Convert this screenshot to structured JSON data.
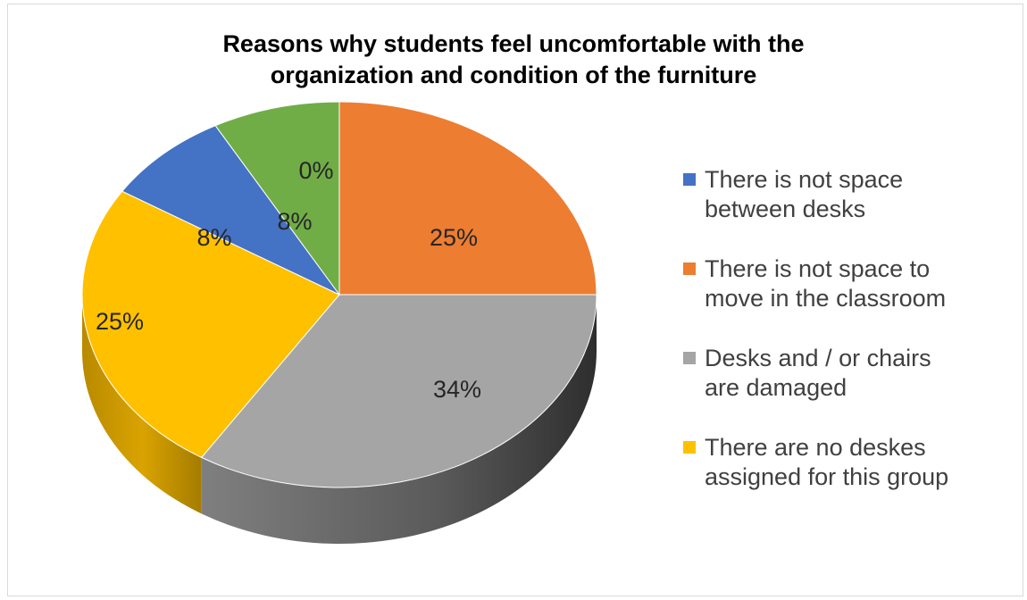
{
  "chart_data": {
    "type": "pie",
    "title": [
      "Reasons why students feel uncomfortable with the",
      "organization and condition of the furniture"
    ],
    "three_d": true,
    "legend_position": "right",
    "slices": [
      {
        "label": [
          "There is not space",
          "between desks"
        ],
        "value": 8,
        "data_label": "8%",
        "color": "#4472c4"
      },
      {
        "label": [
          "There is not space to",
          "move in the classroom"
        ],
        "value": 25,
        "data_label": "25%",
        "color": "#ed7d31"
      },
      {
        "label": [
          "Desks and / or chairs",
          "are damaged"
        ],
        "value": 34,
        "data_label": "34%",
        "color": "#a5a5a5"
      },
      {
        "label": [
          "There are no deskes",
          "assigned for this group"
        ],
        "value": 25,
        "data_label": "25%",
        "color": "#ffc000"
      },
      {
        "label": [],
        "value": 8,
        "data_label": "8%",
        "color": "#70ad47"
      },
      {
        "label": [],
        "value": 0,
        "data_label": "0%",
        "color": "#4472c4"
      }
    ]
  }
}
